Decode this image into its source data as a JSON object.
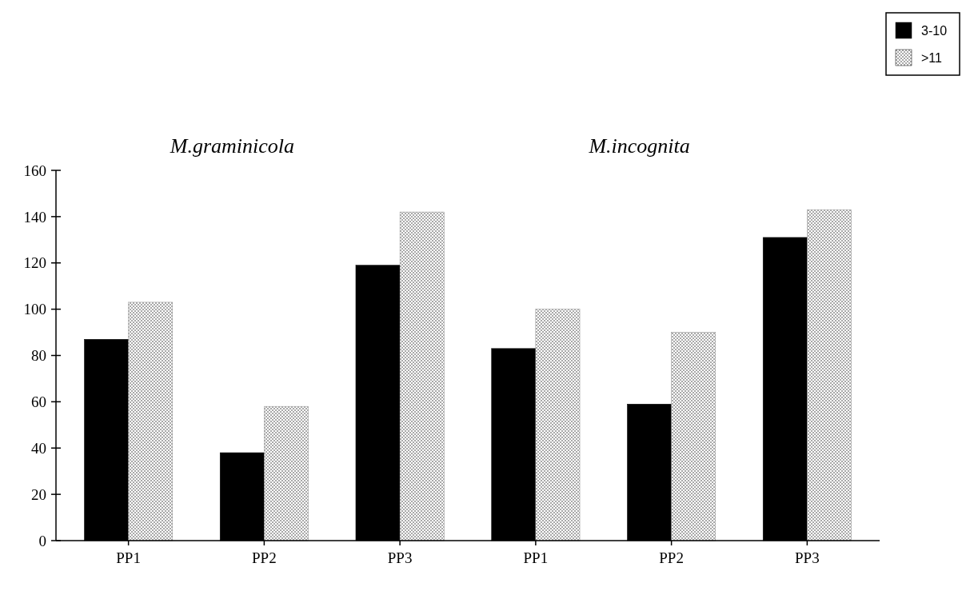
{
  "chart_data": {
    "type": "bar",
    "categories": [
      "PP1",
      "PP2",
      "PP3",
      "PP1",
      "PP2",
      "PP3"
    ],
    "series": [
      {
        "name": "3-10",
        "color": "#000000",
        "values": [
          87,
          38,
          119,
          83,
          59,
          131
        ]
      },
      {
        "name": ">11",
        "color": "#8c8c8c",
        "values": [
          103,
          58,
          142,
          100,
          90,
          143
        ]
      }
    ],
    "ylim": [
      0,
      160
    ],
    "yticks": [
      0,
      20,
      40,
      60,
      80,
      100,
      120,
      140,
      160
    ],
    "grid": false,
    "legend": "top right",
    "annotations": [
      "M.graminicola",
      "M.incognita"
    ]
  }
}
